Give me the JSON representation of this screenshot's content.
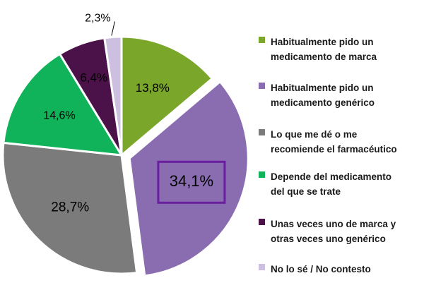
{
  "chart_data": {
    "type": "pie",
    "categories": [
      "Habitualmente pido un medicamento de marca",
      "Habitualmente pido un medicamento genérico",
      "Lo que me dé o me recomiende el farmacéutico",
      "Depende del medicamento del que se trate",
      "Unas veces uno de marca y otras veces uno genérico",
      "No lo sé / No contesto"
    ],
    "values": [
      13.8,
      34.1,
      28.7,
      14.6,
      6.4,
      2.3
    ],
    "labels": [
      "13,8%",
      "34,1%",
      "28,7%",
      "14,6%",
      "6,4%",
      "2,3%"
    ],
    "colors": [
      "#7aa62a",
      "#8a6cb0",
      "#7b7b7b",
      "#11b35a",
      "#4a1249",
      "#cdbfdf"
    ],
    "label_colors": [
      "#000000",
      "#000000",
      "#000000",
      "#000000",
      "#ffffff",
      "#000000"
    ],
    "exploded": "Habitualmente pido un medicamento genérico",
    "highlighted": "34,1%",
    "legend_position": "right",
    "title": "",
    "legend": [
      {
        "line1": "Habitualmente pido un",
        "line2": "medicamento de marca"
      },
      {
        "line1": "Habitualmente pido un",
        "line2": "medicamento genérico"
      },
      {
        "line1": "Lo que me dé o me",
        "line2": "recomiende el farmacéutico"
      },
      {
        "line1": "Depende del medicamento",
        "line2": "del que se trate"
      },
      {
        "line1": "Unas veces uno de marca y",
        "line2": "otras veces uno genérico"
      },
      {
        "line1": "No lo sé / No contesto",
        "line2": ""
      }
    ]
  }
}
